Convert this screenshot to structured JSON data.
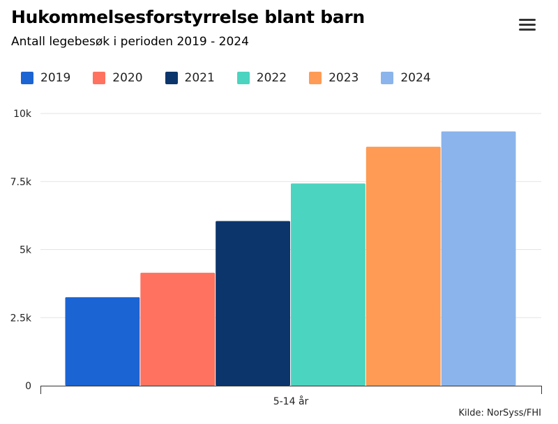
{
  "header": {
    "title": "Hukommelsesforstyrrelse blant barn",
    "subtitle": "Antall legebesøk i perioden 2019 - 2024",
    "menu_icon": "hamburger-menu-icon"
  },
  "credits": "Kilde: NorSyss/FHI",
  "chart_data": {
    "type": "bar",
    "title": "Hukommelsesforstyrrelse blant barn",
    "subtitle": "Antall legebesøk i perioden 2019 - 2024",
    "categories": [
      "5-14 år"
    ],
    "series": [
      {
        "name": "2019",
        "color": "#1b64d3",
        "values": [
          3250
        ]
      },
      {
        "name": "2020",
        "color": "#ff725f",
        "values": [
          4150
        ]
      },
      {
        "name": "2021",
        "color": "#0c356c",
        "values": [
          6050
        ]
      },
      {
        "name": "2022",
        "color": "#4bd4bf",
        "values": [
          7430
        ]
      },
      {
        "name": "2023",
        "color": "#ff9b54",
        "values": [
          8780
        ]
      },
      {
        "name": "2024",
        "color": "#8ab4eb",
        "values": [
          9340
        ]
      }
    ],
    "y_ticks": [
      {
        "value": 0,
        "label": "0"
      },
      {
        "value": 2500,
        "label": "2.5k"
      },
      {
        "value": 5000,
        "label": "5k"
      },
      {
        "value": 7500,
        "label": "7.5k"
      },
      {
        "value": 10000,
        "label": "10k"
      }
    ],
    "ylim": [
      0,
      10000
    ],
    "xlabel": "",
    "ylabel": "",
    "grid": true,
    "legend": "top-left"
  }
}
